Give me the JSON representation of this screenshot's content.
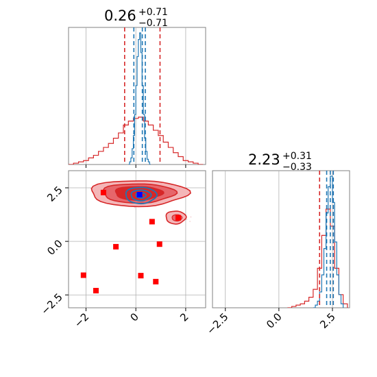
{
  "chart_data": {
    "type": "corner",
    "grid": true,
    "colors": {
      "red": "#d62728",
      "blue": "#1f77b4",
      "marker_red": "#ff0000",
      "marker_blue": "#0000ff",
      "fill_light": "#f4b6b8",
      "fill_mid": "#e6666b",
      "fill_dark": "#d62728"
    },
    "params": [
      {
        "title": {
          "value": "0.26",
          "plus": "+0.71",
          "minus": "−0.71"
        },
        "range": [
          -2.7,
          2.8
        ],
        "ticks": [
          -2,
          0,
          2
        ],
        "tick_labels": [
          "−2",
          "0",
          "2"
        ],
        "quantiles_red": [
          -0.45,
          0.97
        ],
        "quantiles_blue": [
          -0.08,
          0.26,
          0.38
        ]
      },
      {
        "title": {
          "value": "2.23",
          "plus": "+0.31",
          "minus": "−0.33"
        },
        "range": [
          -3.1,
          3.3
        ],
        "ticks": [
          -2.5,
          0.0,
          2.5
        ],
        "tick_labels": [
          "−2.5",
          "0.0",
          "2.5"
        ],
        "quantiles_red": [
          1.9,
          2.54
        ],
        "quantiles_blue": [
          2.23,
          2.4,
          2.54
        ]
      }
    ],
    "hist1_red": {
      "x": [
        -2.7,
        -2.5,
        -2.3,
        -2.1,
        -1.9,
        -1.7,
        -1.5,
        -1.3,
        -1.1,
        -0.9,
        -0.7,
        -0.5,
        -0.3,
        -0.1,
        0.1,
        0.3,
        0.5,
        0.7,
        0.9,
        1.1,
        1.3,
        1.5,
        1.7,
        1.9,
        2.1,
        2.3,
        2.5,
        2.7
      ],
      "counts": [
        0.0,
        0.01,
        0.02,
        0.03,
        0.05,
        0.07,
        0.1,
        0.13,
        0.16,
        0.2,
        0.24,
        0.3,
        0.33,
        0.35,
        0.36,
        0.33,
        0.3,
        0.26,
        0.22,
        0.17,
        0.13,
        0.09,
        0.06,
        0.03,
        0.02,
        0.01,
        0.0,
        0.0
      ]
    },
    "hist1_blue": {
      "x": [
        -0.3,
        -0.25,
        -0.2,
        -0.15,
        -0.1,
        -0.05,
        0.0,
        0.05,
        0.1,
        0.15,
        0.2,
        0.25,
        0.3,
        0.35,
        0.4,
        0.45,
        0.5,
        0.55,
        0.6
      ],
      "counts": [
        0.0,
        0.02,
        0.05,
        0.12,
        0.22,
        0.38,
        0.6,
        0.82,
        0.95,
        1.0,
        0.85,
        0.6,
        0.38,
        0.2,
        0.1,
        0.04,
        0.02,
        0.0,
        0.0
      ]
    },
    "hist2_red": {
      "x": [
        0.4,
        0.6,
        0.8,
        1.0,
        1.2,
        1.4,
        1.6,
        1.8,
        2.0,
        2.2,
        2.4,
        2.6,
        2.8,
        3.0,
        3.2
      ],
      "counts": [
        0.0,
        0.01,
        0.02,
        0.03,
        0.05,
        0.08,
        0.14,
        0.3,
        0.55,
        0.75,
        0.62,
        0.3,
        0.1,
        0.03,
        0.0
      ]
    },
    "hist2_blue": {
      "x": [
        1.6,
        1.7,
        1.8,
        1.9,
        2.0,
        2.1,
        2.2,
        2.3,
        2.4,
        2.5,
        2.6,
        2.7,
        2.8,
        2.9,
        3.0
      ],
      "counts": [
        0.0,
        0.02,
        0.05,
        0.12,
        0.25,
        0.45,
        0.72,
        0.92,
        1.0,
        0.8,
        0.5,
        0.25,
        0.1,
        0.03,
        0.0
      ]
    },
    "red_markers": [
      [
        -1.3,
        2.28
      ],
      [
        0.65,
        0.92
      ],
      [
        0.95,
        -0.13
      ],
      [
        -0.8,
        -0.25
      ],
      [
        -2.1,
        -1.58
      ],
      [
        0.2,
        -1.6
      ],
      [
        0.8,
        -1.88
      ],
      [
        -1.6,
        -2.3
      ],
      [
        1.7,
        1.1
      ]
    ],
    "blue_markers": [
      [
        0.15,
        2.18
      ]
    ]
  }
}
